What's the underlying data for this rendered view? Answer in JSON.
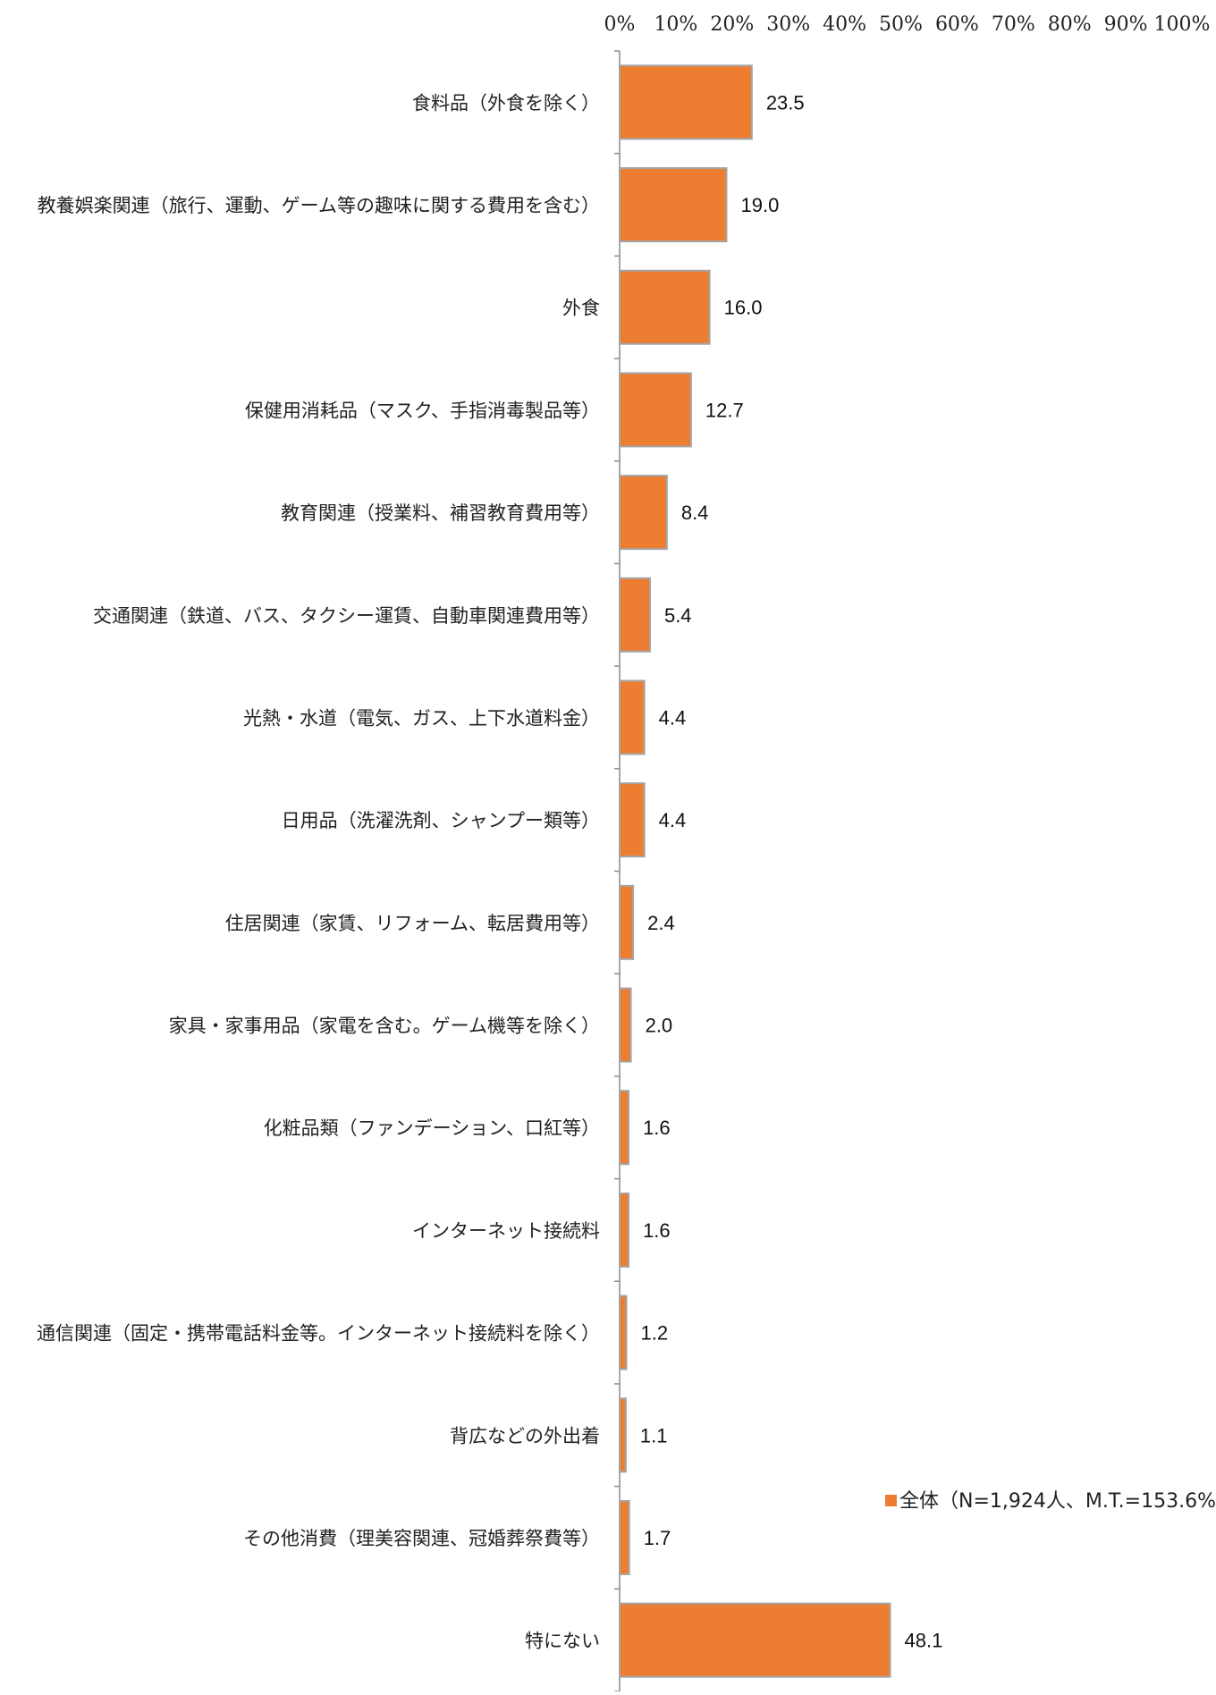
{
  "chart_data": {
    "type": "bar",
    "orientation": "horizontal",
    "title": "",
    "xlabel": "",
    "ylabel": "",
    "xlim": [
      0,
      100
    ],
    "x_ticks": [
      "0%",
      "10%",
      "20%",
      "30%",
      "40%",
      "50%",
      "60%",
      "70%",
      "80%",
      "90%",
      "100%"
    ],
    "x_axis_position": "top",
    "grid": false,
    "categories": [
      "食料品（外食を除く）",
      "教養娯楽関連（旅行、運動、ゲーム等の趣味に関する費用を含む）",
      "外食",
      "保健用消耗品（マスク、手指消毒製品等）",
      "教育関連（授業料、補習教育費用等）",
      "交通関連（鉄道、バス、タクシー運賃、自動車関連費用等）",
      "光熱・水道（電気、ガス、上下水道料金）",
      "日用品（洗濯洗剤、シャンプー類等）",
      "住居関連（家賃、リフォーム、転居費用等）",
      "家具・家事用品（家電を含む。ゲーム機等を除く）",
      "化粧品類（ファンデーション、口紅等）",
      "インターネット接続料",
      "通信関連（固定・携帯電話料金等。インターネット接続料を除く）",
      "背広などの外出着",
      "その他消費（理美容関連、冠婚葬祭費等）",
      "特にない"
    ],
    "series": [
      {
        "name": "全体（N=1,924人、M.T.=153.6%）",
        "color": "#ED7D31",
        "values": [
          23.5,
          19.0,
          16.0,
          12.7,
          8.4,
          5.4,
          4.4,
          4.4,
          2.4,
          2.0,
          1.6,
          1.6,
          1.2,
          1.1,
          1.7,
          48.1
        ],
        "value_labels": [
          "23.5",
          "19.0",
          "16.0",
          "12.7",
          "8.4",
          "5.4",
          "4.4",
          "4.4",
          "2.4",
          "2.0",
          "1.6",
          "1.6",
          "1.2",
          "1.1",
          "1.7",
          "48.1"
        ]
      }
    ],
    "legend": {
      "placement": "right",
      "entry": "全体（N=1,924人、M.T.=153.6%）"
    },
    "colors": {
      "bar_fill": "#ED7D31",
      "bar_stroke": "#A5A5A5",
      "axis": "#8C8C8C"
    }
  }
}
